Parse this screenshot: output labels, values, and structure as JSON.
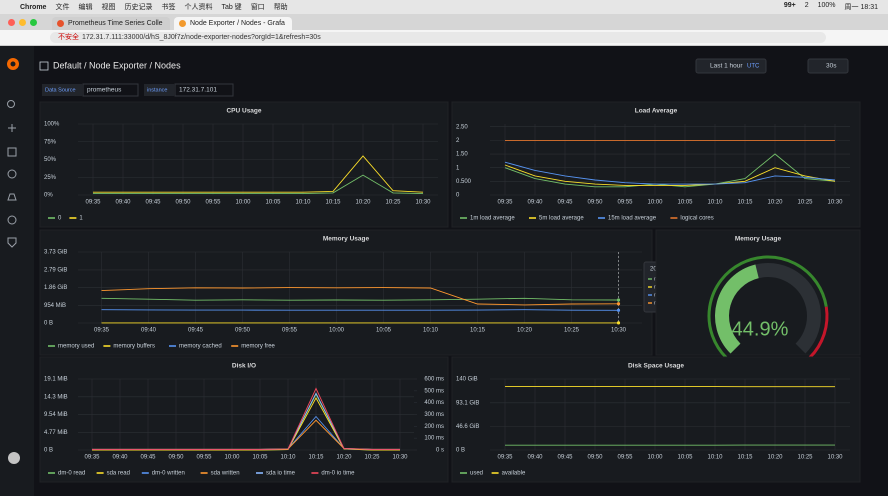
{
  "menubar": {
    "items": [
      "Chrome",
      "文件",
      "编辑",
      "视图",
      "历史记录",
      "书签",
      "个人资料",
      "Tab 键",
      "窗口",
      "帮助"
    ],
    "status": [
      "99+",
      "2",
      "100%",
      "周一 18:31"
    ]
  },
  "tabs": [
    "Prometheus Time Series Colle",
    "Node Exporter / Nodes - Grafa"
  ],
  "address": {
    "security": "不安全",
    "url": "172.31.7.111:33000/d/hS_8J0f7z/node-exporter-nodes?orgId=1&refresh=30s"
  },
  "dashboard": {
    "title": "Default / Node Exporter / Nodes",
    "time_range": "Last 1 hour",
    "timezone": "UTC",
    "refresh": "30s",
    "variables": [
      {
        "label": "Data Source",
        "value": "prometheus"
      },
      {
        "label": "instance",
        "value": "172.31.7.101"
      }
    ]
  },
  "chart_data": [
    {
      "type": "line",
      "title": "CPU Usage",
      "grid": true,
      "categories": [
        "09:35",
        "09:40",
        "09:45",
        "09:50",
        "09:55",
        "10:00",
        "10:05",
        "10:10",
        "10:15",
        "10:20",
        "10:25",
        "10:30"
      ],
      "ylim": [
        0,
        100
      ],
      "yticks": [
        {
          "value": 0,
          "label": "0%"
        },
        {
          "value": 25,
          "label": "25%"
        },
        {
          "value": 50,
          "label": "50%"
        },
        {
          "value": 75,
          "label": "75%"
        },
        {
          "value": 100,
          "label": "100%"
        }
      ],
      "series": [
        {
          "name": "0",
          "color": "#73bf69",
          "values": [
            2,
            2,
            2,
            2,
            2,
            2,
            2,
            2,
            3,
            28,
            3,
            2
          ]
        },
        {
          "name": "1",
          "color": "#fade2a",
          "values": [
            4,
            4,
            4,
            4,
            4,
            4,
            4,
            4,
            5,
            55,
            6,
            4
          ]
        }
      ]
    },
    {
      "type": "line",
      "title": "Load Average",
      "grid": true,
      "categories": [
        "09:35",
        "09:40",
        "09:45",
        "09:50",
        "09:55",
        "10:00",
        "10:05",
        "10:10",
        "10:15",
        "10:20",
        "10:25",
        "10:30"
      ],
      "ylim": [
        0,
        2.6
      ],
      "yticks": [
        0,
        {
          "value": 0.5,
          "label": "0.500"
        },
        1,
        {
          "value": 1.5,
          "label": "1.50"
        },
        2,
        {
          "value": 2.5,
          "label": "2.50"
        }
      ],
      "series": [
        {
          "name": "1m load average",
          "color": "#73bf69",
          "values": [
            1.0,
            0.6,
            0.4,
            0.3,
            0.3,
            0.4,
            0.3,
            0.4,
            0.6,
            1.5,
            0.6,
            0.5
          ]
        },
        {
          "name": "5m load average",
          "color": "#fade2a",
          "values": [
            1.1,
            0.7,
            0.5,
            0.4,
            0.35,
            0.35,
            0.35,
            0.4,
            0.5,
            1.0,
            0.7,
            0.5
          ]
        },
        {
          "name": "15m load average",
          "color": "#5794f2",
          "values": [
            1.2,
            0.9,
            0.7,
            0.55,
            0.45,
            0.4,
            0.4,
            0.4,
            0.45,
            0.7,
            0.65,
            0.55
          ]
        },
        {
          "name": "logical cores",
          "color": "#e0752d",
          "values": [
            2,
            2,
            2,
            2,
            2,
            2,
            2,
            2,
            2,
            2,
            2,
            2
          ]
        }
      ]
    },
    {
      "type": "line",
      "title": "Memory Usage",
      "grid": true,
      "categories": [
        "09:35",
        "09:40",
        "09:45",
        "09:50",
        "09:55",
        "10:00",
        "10:05",
        "10:10",
        "10:15",
        "10:20",
        "10:25",
        "10:30"
      ],
      "ylim": [
        0,
        3.73
      ],
      "yticks": [
        {
          "value": 0,
          "label": "0 B"
        },
        {
          "value": 0.9316,
          "label": "954 MiB"
        },
        {
          "value": 1.86,
          "label": "1.86 GiB"
        },
        {
          "value": 2.79,
          "label": "2.79 GiB"
        },
        {
          "value": 3.73,
          "label": "3.73 GiB"
        }
      ],
      "series": [
        {
          "name": "memory used",
          "color": "#73bf69",
          "values": [
            1.3,
            1.25,
            1.2,
            1.22,
            1.2,
            1.21,
            1.2,
            1.22,
            1.25,
            1.3,
            1.22,
            1.21
          ]
        },
        {
          "name": "memory buffers",
          "color": "#fade2a",
          "values": [
            0.006,
            0.006,
            0.006,
            0.006,
            0.006,
            0.006,
            0.006,
            0.006,
            0.006,
            0.006,
            0.006,
            0.00623
          ]
        },
        {
          "name": "memory cached",
          "color": "#5794f2",
          "values": [
            0.7,
            0.69,
            0.68,
            0.68,
            0.67,
            0.67,
            0.67,
            0.67,
            0.68,
            0.7,
            0.67,
            0.667
          ]
        },
        {
          "name": "memory free",
          "color": "#ff9830",
          "values": [
            1.7,
            1.8,
            1.85,
            1.84,
            1.86,
            1.85,
            1.86,
            1.84,
            1.0,
            0.95,
            1.0,
            1.01
          ]
        }
      ],
      "tooltip": {
        "time": "2022-02-21 10:30:00",
        "values": [
          1.21,
          0.00623,
          0.667,
          1.01
        ],
        "value_labels": [
          "1.21 GiB",
          "6.38 MiB",
          "683 MiB",
          "1.01 GiB"
        ]
      }
    },
    {
      "type": "gauge",
      "title": "Memory Usage",
      "value": 44.9,
      "value_label": "44.9%",
      "lim": [
        0,
        100
      ],
      "color": "#73bf69"
    },
    {
      "type": "line",
      "title": "Disk I/O",
      "grid": true,
      "categories": [
        "09:35",
        "09:40",
        "09:45",
        "09:50",
        "09:55",
        "10:00",
        "10:05",
        "10:10",
        "10:15",
        "10:20",
        "10:25",
        "10:30"
      ],
      "ylim": [
        0,
        19.1
      ],
      "yticks": [
        {
          "value": 0,
          "label": "0 B"
        },
        {
          "value": 4.77,
          "label": "4.77 MiB"
        },
        {
          "value": 9.54,
          "label": "9.54 MiB"
        },
        {
          "value": 14.3,
          "label": "14.3 MiB"
        },
        {
          "value": 19.1,
          "label": "19.1 MiB"
        }
      ],
      "y2lim": [
        0,
        600
      ],
      "y2ticks": [
        {
          "value": 0,
          "label": "0 s"
        },
        {
          "value": 100,
          "label": "100 ms"
        },
        {
          "value": 200,
          "label": "200 ms"
        },
        {
          "value": 300,
          "label": "300 ms"
        },
        {
          "value": 400,
          "label": "400 ms"
        },
        {
          "value": 500,
          "label": "500 ms"
        },
        {
          "value": 600,
          "label": "600 ms"
        }
      ],
      "series": [
        {
          "name": "dm-0 read",
          "color": "#73bf69",
          "values": [
            0,
            0,
            0,
            0,
            0,
            0,
            0,
            0.1,
            15,
            0.3,
            0,
            0
          ]
        },
        {
          "name": "sda read",
          "color": "#fade2a",
          "values": [
            0,
            0,
            0,
            0,
            0,
            0,
            0,
            0.1,
            14,
            0.3,
            0,
            0
          ]
        },
        {
          "name": "dm-0 written",
          "color": "#5794f2",
          "values": [
            0.2,
            0.2,
            0.2,
            0.2,
            0.2,
            0.2,
            0.2,
            0.3,
            9,
            0.4,
            0.2,
            0.2
          ]
        },
        {
          "name": "sda written",
          "color": "#ff9830",
          "values": [
            0.2,
            0.2,
            0.2,
            0.2,
            0.2,
            0.2,
            0.2,
            0.3,
            8,
            0.4,
            0.2,
            0.2
          ]
        },
        {
          "name": "sda io time",
          "color": "#8ab8ff",
          "axis": "y2",
          "values": [
            5,
            5,
            5,
            5,
            5,
            5,
            5,
            8,
            480,
            12,
            5,
            5
          ]
        },
        {
          "name": "dm-0 io time",
          "color": "#f2495c",
          "axis": "y2",
          "values": [
            5,
            5,
            5,
            5,
            5,
            5,
            5,
            8,
            520,
            12,
            5,
            5
          ]
        }
      ]
    },
    {
      "type": "line",
      "title": "Disk Space Usage",
      "grid": true,
      "categories": [
        "09:35",
        "09:40",
        "09:45",
        "09:50",
        "09:55",
        "10:00",
        "10:05",
        "10:10",
        "10:15",
        "10:20",
        "10:25",
        "10:30"
      ],
      "ylim": [
        0,
        140
      ],
      "yticks": [
        {
          "value": 0,
          "label": "0 B"
        },
        {
          "value": 46.6,
          "label": "46.6 GiB"
        },
        {
          "value": 93.1,
          "label": "93.1 GiB"
        },
        {
          "value": 140,
          "label": "140 GiB"
        }
      ],
      "series": [
        {
          "name": "used",
          "color": "#73bf69",
          "values": [
            9.5,
            9.5,
            9.5,
            9.5,
            9.5,
            9.5,
            9.5,
            9.5,
            9.6,
            9.6,
            9.6,
            9.6
          ]
        },
        {
          "name": "available",
          "color": "#fade2a",
          "values": [
            125,
            125,
            125,
            125,
            125,
            125,
            125,
            125,
            124.9,
            124.9,
            124.9,
            124.9
          ]
        }
      ]
    }
  ]
}
